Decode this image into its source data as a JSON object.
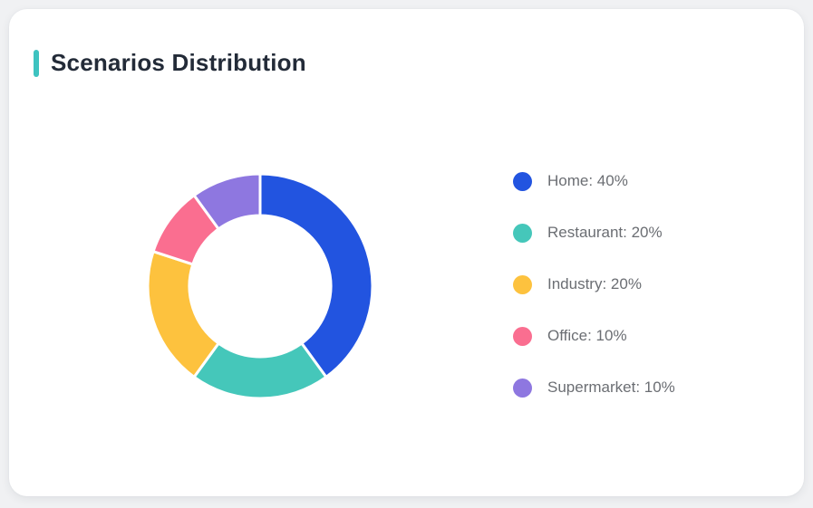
{
  "page": {
    "background_color": "#f0f1f3",
    "card_background": "#ffffff"
  },
  "card": {
    "title": "Scenarios Distribution",
    "accent_color": "#3ec3c0",
    "title_color": "#232b38"
  },
  "chart_data": {
    "type": "pie",
    "subtype": "donut",
    "title": "Scenarios Distribution",
    "start_angle_deg": 0,
    "direction": "clockwise",
    "inner_radius_ratio": 0.63,
    "legend_position": "right",
    "segment_gap_color": "#ffffff",
    "categories": [
      "Home",
      "Restaurant",
      "Industry",
      "Office",
      "Supermarket"
    ],
    "values": [
      40,
      20,
      20,
      10,
      10
    ],
    "segments": [
      {
        "label": "Home",
        "value": 40,
        "color": "#2254e0",
        "legend_label": "Home: 40%"
      },
      {
        "label": "Restaurant",
        "value": 20,
        "color": "#45c7ba",
        "legend_label": "Restaurant: 20%"
      },
      {
        "label": "Industry",
        "value": 20,
        "color": "#fdc23e",
        "legend_label": "Industry: 20%"
      },
      {
        "label": "Office",
        "value": 10,
        "color": "#fa6e90",
        "legend_label": "Office: 10%"
      },
      {
        "label": "Supermarket",
        "value": 10,
        "color": "#8e77e0",
        "legend_label": "Supermarket: 10%"
      }
    ]
  }
}
